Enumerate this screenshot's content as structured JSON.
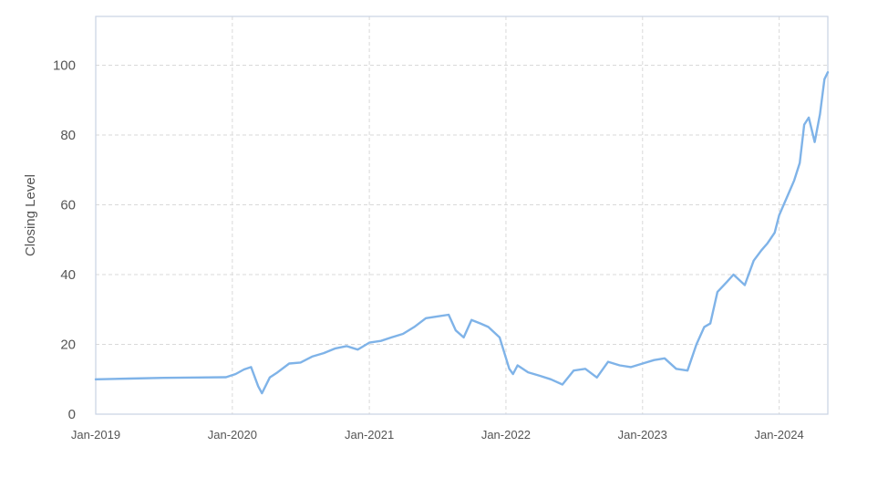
{
  "chart_data": {
    "type": "line",
    "title": "",
    "xlabel": "",
    "ylabel": "Closing Level",
    "xlim": [
      "2019-01-01",
      "2024-05-10"
    ],
    "ylim": [
      0,
      114
    ],
    "grid": true,
    "legend": "none",
    "x_ticks": [
      {
        "date": "2019-01-01",
        "label": "Jan-2019"
      },
      {
        "date": "2020-01-01",
        "label": "Jan-2020"
      },
      {
        "date": "2021-01-01",
        "label": "Jan-2021"
      },
      {
        "date": "2022-01-01",
        "label": "Jan-2022"
      },
      {
        "date": "2023-01-01",
        "label": "Jan-2023"
      },
      {
        "date": "2024-01-01",
        "label": "Jan-2024"
      }
    ],
    "y_ticks": [
      {
        "value": 0,
        "label": "0"
      },
      {
        "value": 20,
        "label": "20"
      },
      {
        "value": 40,
        "label": "40"
      },
      {
        "value": 60,
        "label": "60"
      },
      {
        "value": 80,
        "label": "80"
      },
      {
        "value": 100,
        "label": "100"
      }
    ],
    "colors": {
      "line": "#7fb3e8",
      "frame": "#c9d3e3",
      "grid": "#d9d9d9",
      "text": "#555555"
    },
    "series": [
      {
        "x": [
          "2019-01-01",
          "2019-04-01",
          "2019-07-01",
          "2019-10-01",
          "2019-12-15",
          "2020-01-10",
          "2020-02-01",
          "2020-02-20",
          "2020-03-10",
          "2020-03-20",
          "2020-04-10",
          "2020-05-01",
          "2020-06-01",
          "2020-07-01",
          "2020-08-01",
          "2020-09-01",
          "2020-10-01",
          "2020-11-01",
          "2020-12-01",
          "2021-01-01",
          "2021-02-01",
          "2021-03-01",
          "2021-04-01",
          "2021-05-01",
          "2021-06-01",
          "2021-07-01",
          "2021-08-01",
          "2021-08-20",
          "2021-09-10",
          "2021-10-01",
          "2021-10-25",
          "2021-11-15",
          "2021-12-15",
          "2022-01-10",
          "2022-01-20",
          "2022-02-01",
          "2022-03-01",
          "2022-04-01",
          "2022-05-01",
          "2022-06-01",
          "2022-07-01",
          "2022-08-01",
          "2022-09-01",
          "2022-10-01",
          "2022-11-01",
          "2022-12-01",
          "2023-01-01",
          "2023-02-01",
          "2023-03-01",
          "2023-04-01",
          "2023-05-01",
          "2023-05-25",
          "2023-06-15",
          "2023-07-01",
          "2023-07-20",
          "2023-08-15",
          "2023-09-01",
          "2023-10-01",
          "2023-10-25",
          "2023-11-15",
          "2023-12-01",
          "2023-12-20",
          "2024-01-01",
          "2024-01-25",
          "2024-02-10",
          "2024-02-25",
          "2024-03-08",
          "2024-03-20",
          "2024-04-05",
          "2024-04-19",
          "2024-05-01",
          "2024-05-10"
        ],
        "y": [
          10,
          10.2,
          10.4,
          10.5,
          10.6,
          11.5,
          12.8,
          13.5,
          8,
          6,
          10.5,
          12,
          14.5,
          14.8,
          16.5,
          17.5,
          18.8,
          19.5,
          18.5,
          20.5,
          21,
          22,
          23,
          25,
          27.5,
          28,
          28.5,
          24,
          22,
          27,
          26,
          25,
          22,
          13,
          11.5,
          14,
          12,
          11,
          10,
          8.5,
          12.5,
          13,
          10.5,
          15,
          14,
          13.5,
          14.5,
          15.5,
          16,
          13,
          12.5,
          20,
          25,
          26,
          35,
          38,
          40,
          37,
          44,
          47,
          49,
          52,
          57,
          63,
          67,
          72,
          83,
          85,
          78,
          86,
          96,
          98
        ]
      }
    ]
  }
}
